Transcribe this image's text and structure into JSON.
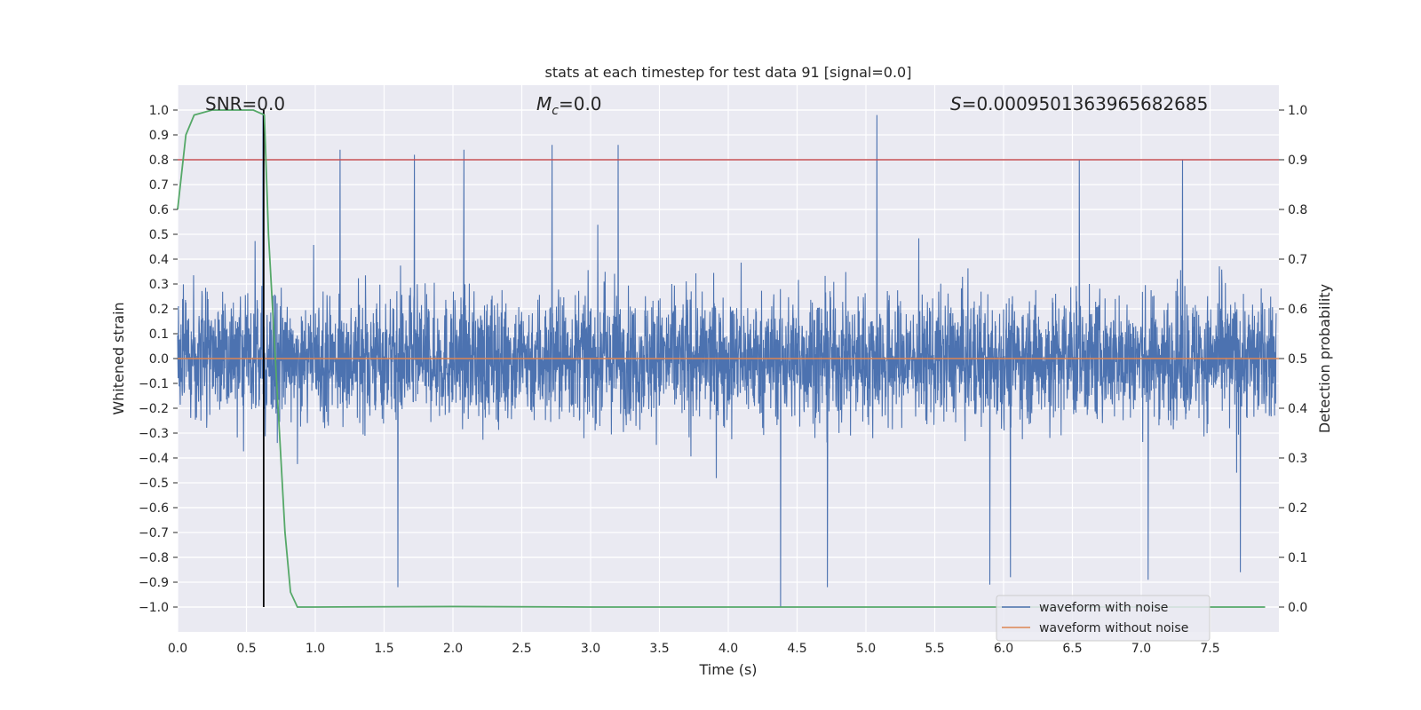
{
  "chart_data": {
    "type": "line",
    "title": "stats at each timestep for test data 91 [signal=0.0]",
    "xlabel": "Time (s)",
    "ylabel": "Whitened strain",
    "y2label": "Detection probability",
    "xlim": [
      0.0,
      8.0
    ],
    "ylim": [
      -1.1,
      1.1
    ],
    "y2lim": [
      -0.05,
      1.05
    ],
    "x_ticks": [
      "0.0",
      "0.5",
      "1.0",
      "1.5",
      "2.0",
      "2.5",
      "3.0",
      "3.5",
      "4.0",
      "4.5",
      "5.0",
      "5.5",
      "6.0",
      "6.5",
      "7.0",
      "7.5"
    ],
    "y_ticks": [
      "1.0",
      "0.9",
      "0.8",
      "0.7",
      "0.6",
      "0.5",
      "0.4",
      "0.3",
      "0.2",
      "0.1",
      "0.0",
      "−0.1",
      "−0.2",
      "−0.3",
      "−0.4",
      "−0.5",
      "−0.6",
      "−0.7",
      "−0.8",
      "−0.9",
      "−1.0"
    ],
    "y2_ticks": [
      "1.0",
      "0.9",
      "0.8",
      "0.7",
      "0.6",
      "0.5",
      "0.4",
      "0.3",
      "0.2",
      "0.1",
      "0.0"
    ],
    "grid": true,
    "legend_position": "lower-right",
    "annotations": {
      "snr": "SNR=0.0",
      "mc_symbol": "M",
      "mc_sub": "c",
      "mc_value": "=0.0",
      "s_symbol": "S",
      "s_value": "=0.0009501363965682685"
    },
    "series": [
      {
        "name": "waveform with noise",
        "color": "#4c72b0",
        "style": "dense noise between about -0.6 and 0.55 with spikes up to 0.98 and down to -1.0",
        "peaks": [
          {
            "x": 0.62,
            "y": 0.99
          },
          {
            "x": 1.18,
            "y": 0.84
          },
          {
            "x": 1.72,
            "y": 0.82
          },
          {
            "x": 2.08,
            "y": 0.84
          },
          {
            "x": 2.72,
            "y": 0.86
          },
          {
            "x": 3.2,
            "y": 0.86
          },
          {
            "x": 5.08,
            "y": 0.98
          },
          {
            "x": 6.55,
            "y": 0.8
          },
          {
            "x": 7.3,
            "y": 0.8
          },
          {
            "x": 1.6,
            "y": -0.92
          },
          {
            "x": 4.38,
            "y": -1.0
          },
          {
            "x": 4.72,
            "y": -0.92
          },
          {
            "x": 5.9,
            "y": -0.91
          },
          {
            "x": 6.05,
            "y": -0.88
          },
          {
            "x": 7.05,
            "y": -0.89
          },
          {
            "x": 7.72,
            "y": -0.86
          }
        ]
      },
      {
        "name": "waveform without noise",
        "color": "#dd8452",
        "x": [
          0.0,
          8.0
        ],
        "y": [
          0.0,
          0.0
        ]
      },
      {
        "name": "detection probability",
        "axis": "right",
        "color": "#55a868",
        "x": [
          0.0,
          0.06,
          0.12,
          0.25,
          0.4,
          0.5,
          0.55,
          0.63,
          0.66,
          0.72,
          0.78,
          0.82,
          0.87,
          1.0,
          2.0,
          3.0,
          4.0,
          5.0,
          6.0,
          7.0,
          7.9
        ],
        "y": [
          0.8,
          0.95,
          0.99,
          1.0,
          1.0,
          1.0,
          1.0,
          0.99,
          0.75,
          0.45,
          0.15,
          0.03,
          0.0,
          0.0,
          0.001,
          0.0,
          0.0,
          0.0,
          0.0,
          0.0,
          0.0
        ]
      }
    ],
    "hlines": [
      {
        "axis": "right",
        "y": 0.9,
        "color": "#c44e52"
      }
    ],
    "vlines": [
      {
        "x": 0.625,
        "y_from": -1.0,
        "y_to": 1.0,
        "color": "#000000"
      }
    ]
  }
}
